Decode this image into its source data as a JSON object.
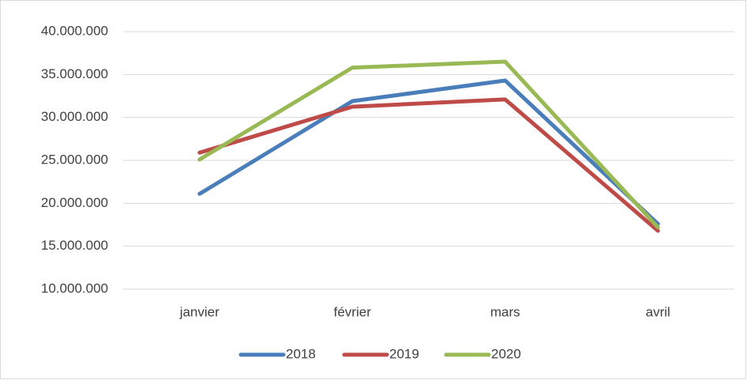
{
  "chart_data": {
    "type": "line",
    "categories": [
      "janvier",
      "février",
      "mars",
      "avril"
    ],
    "series": [
      {
        "name": "2018",
        "color": "#4a7ebb",
        "values": [
          21100000,
          31900000,
          34300000,
          17600000
        ]
      },
      {
        "name": "2019",
        "color": "#be4b48",
        "values": [
          25900000,
          31250000,
          32100000,
          16800000
        ]
      },
      {
        "name": "2020",
        "color": "#98b954",
        "values": [
          25100000,
          35800000,
          36500000,
          17200000
        ]
      }
    ],
    "ylim": [
      10000000,
      40000000
    ],
    "yticks": [
      {
        "value": 10000000,
        "label": "10.000.000"
      },
      {
        "value": 15000000,
        "label": "15.000.000"
      },
      {
        "value": 20000000,
        "label": "20.000.000"
      },
      {
        "value": 25000000,
        "label": "25.000.000"
      },
      {
        "value": 30000000,
        "label": "30.000.000"
      },
      {
        "value": 35000000,
        "label": "35.000.000"
      },
      {
        "value": 40000000,
        "label": "40.000.000"
      }
    ],
    "grid": true,
    "legend": "bottom"
  }
}
